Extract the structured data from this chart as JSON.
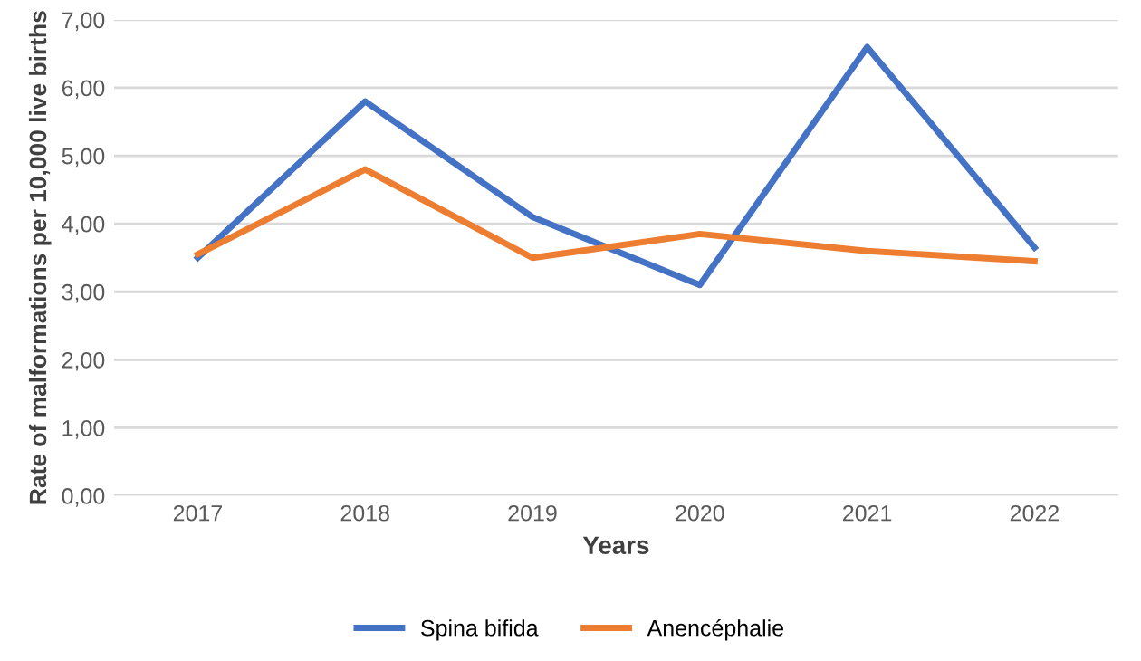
{
  "chart_data": {
    "type": "line",
    "xlabel": "Years",
    "ylabel": "Rate of malformations per 10,000 live births",
    "categories": [
      "2017",
      "2018",
      "2019",
      "2020",
      "2021",
      "2022"
    ],
    "series": [
      {
        "name": "Spina bifida",
        "color": "#4472c4",
        "values": [
          3.5,
          5.8,
          4.1,
          3.1,
          6.6,
          3.65
        ]
      },
      {
        "name": "Anencéphalie",
        "color": "#ed7d31",
        "values": [
          3.55,
          4.8,
          3.5,
          3.85,
          3.6,
          3.45
        ]
      }
    ],
    "ylim": [
      0,
      7
    ],
    "yticks": [
      {
        "value": 0,
        "label": "0,00"
      },
      {
        "value": 1,
        "label": "1,00"
      },
      {
        "value": 2,
        "label": "2,00"
      },
      {
        "value": 3,
        "label": "3,00"
      },
      {
        "value": 4,
        "label": "4,00"
      },
      {
        "value": 5,
        "label": "5,00"
      },
      {
        "value": 6,
        "label": "6,00"
      },
      {
        "value": 7,
        "label": "7,00"
      }
    ],
    "grid": "y",
    "legend": "bottom",
    "marker": "none",
    "line_style": "solid"
  }
}
